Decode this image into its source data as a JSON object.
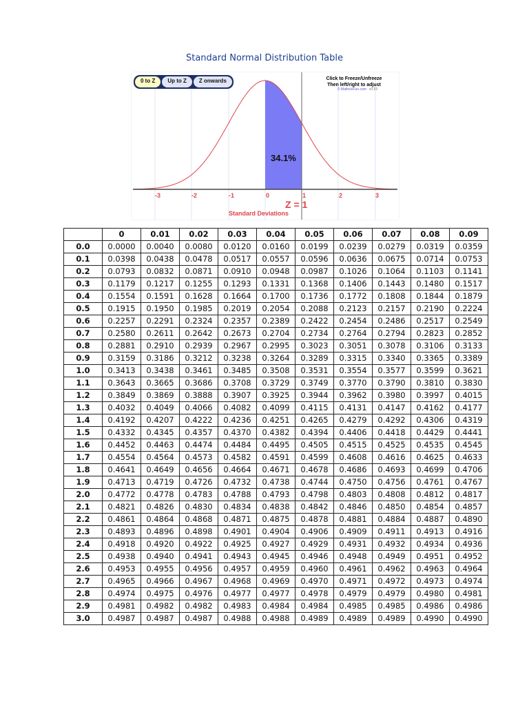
{
  "page": {
    "title": "Standard Normal Distribution Table"
  },
  "widget": {
    "mode_tabs": [
      {
        "label": "0 to Z",
        "active": true
      },
      {
        "label": "Up to Z",
        "active": false
      },
      {
        "label": "Z onwards",
        "active": false
      }
    ],
    "hint_line1": "Click to Freeze/Unfreeze",
    "hint_line2": "Then left/right to adjust",
    "credit": "© MathsIsFun.com",
    "version": "v0.53",
    "shaded_percent": "34.1%",
    "z_label": "Z = 1",
    "x_axis_label": "Standard Deviations",
    "x_ticks": [
      "-3",
      "-2",
      "-1",
      "0",
      "1",
      "2",
      "3"
    ],
    "colors": {
      "curve": "#e0434b",
      "shade": "#7b7bf5",
      "title": "#1f3f8f",
      "tab_active": "#fdfbc4",
      "tab_border": "#1d2f63"
    }
  },
  "chart_data": [
    {
      "type": "area",
      "title": "Standard Normal Distribution Table",
      "xlabel": "Standard Deviations",
      "ylabel": "",
      "x_ticks": [
        -3,
        -2,
        -1,
        0,
        1,
        2,
        3
      ],
      "xlim": [
        -3.6,
        3.6
      ],
      "series": [
        {
          "name": "Normal curve",
          "function": "standard normal pdf"
        },
        {
          "name": "Shaded area 0 to Z",
          "from": 0,
          "to": 1,
          "value_percent": 34.1
        }
      ],
      "annotations": [
        "34.1%",
        "Z = 1"
      ],
      "mode": "0 to Z",
      "grid": true
    },
    {
      "type": "table",
      "title": "Standard Normal Distribution Table (0 to Z)",
      "columns": [
        "",
        "0",
        "0.01",
        "0.02",
        "0.03",
        "0.04",
        "0.05",
        "0.06",
        "0.07",
        "0.08",
        "0.09"
      ],
      "rows": [
        {
          "z": "0.0",
          "values": [
            "0.0000",
            "0.0040",
            "0.0080",
            "0.0120",
            "0.0160",
            "0.0199",
            "0.0239",
            "0.0279",
            "0.0319",
            "0.0359"
          ]
        },
        {
          "z": "0.1",
          "values": [
            "0.0398",
            "0.0438",
            "0.0478",
            "0.0517",
            "0.0557",
            "0.0596",
            "0.0636",
            "0.0675",
            "0.0714",
            "0.0753"
          ]
        },
        {
          "z": "0.2",
          "values": [
            "0.0793",
            "0.0832",
            "0.0871",
            "0.0910",
            "0.0948",
            "0.0987",
            "0.1026",
            "0.1064",
            "0.1103",
            "0.1141"
          ]
        },
        {
          "z": "0.3",
          "values": [
            "0.1179",
            "0.1217",
            "0.1255",
            "0.1293",
            "0.1331",
            "0.1368",
            "0.1406",
            "0.1443",
            "0.1480",
            "0.1517"
          ]
        },
        {
          "z": "0.4",
          "values": [
            "0.1554",
            "0.1591",
            "0.1628",
            "0.1664",
            "0.1700",
            "0.1736",
            "0.1772",
            "0.1808",
            "0.1844",
            "0.1879"
          ]
        },
        {
          "z": "0.5",
          "values": [
            "0.1915",
            "0.1950",
            "0.1985",
            "0.2019",
            "0.2054",
            "0.2088",
            "0.2123",
            "0.2157",
            "0.2190",
            "0.2224"
          ]
        },
        {
          "z": "0.6",
          "values": [
            "0.2257",
            "0.2291",
            "0.2324",
            "0.2357",
            "0.2389",
            "0.2422",
            "0.2454",
            "0.2486",
            "0.2517",
            "0.2549"
          ]
        },
        {
          "z": "0.7",
          "values": [
            "0.2580",
            "0.2611",
            "0.2642",
            "0.2673",
            "0.2704",
            "0.2734",
            "0.2764",
            "0.2794",
            "0.2823",
            "0.2852"
          ]
        },
        {
          "z": "0.8",
          "values": [
            "0.2881",
            "0.2910",
            "0.2939",
            "0.2967",
            "0.2995",
            "0.3023",
            "0.3051",
            "0.3078",
            "0.3106",
            "0.3133"
          ]
        },
        {
          "z": "0.9",
          "values": [
            "0.3159",
            "0.3186",
            "0.3212",
            "0.3238",
            "0.3264",
            "0.3289",
            "0.3315",
            "0.3340",
            "0.3365",
            "0.3389"
          ]
        },
        {
          "z": "1.0",
          "values": [
            "0.3413",
            "0.3438",
            "0.3461",
            "0.3485",
            "0.3508",
            "0.3531",
            "0.3554",
            "0.3577",
            "0.3599",
            "0.3621"
          ]
        },
        {
          "z": "1.1",
          "values": [
            "0.3643",
            "0.3665",
            "0.3686",
            "0.3708",
            "0.3729",
            "0.3749",
            "0.3770",
            "0.3790",
            "0.3810",
            "0.3830"
          ]
        },
        {
          "z": "1.2",
          "values": [
            "0.3849",
            "0.3869",
            "0.3888",
            "0.3907",
            "0.3925",
            "0.3944",
            "0.3962",
            "0.3980",
            "0.3997",
            "0.4015"
          ]
        },
        {
          "z": "1.3",
          "values": [
            "0.4032",
            "0.4049",
            "0.4066",
            "0.4082",
            "0.4099",
            "0.4115",
            "0.4131",
            "0.4147",
            "0.4162",
            "0.4177"
          ]
        },
        {
          "z": "1.4",
          "values": [
            "0.4192",
            "0.4207",
            "0.4222",
            "0.4236",
            "0.4251",
            "0.4265",
            "0.4279",
            "0.4292",
            "0.4306",
            "0.4319"
          ]
        },
        {
          "z": "1.5",
          "values": [
            "0.4332",
            "0.4345",
            "0.4357",
            "0.4370",
            "0.4382",
            "0.4394",
            "0.4406",
            "0.4418",
            "0.4429",
            "0.4441"
          ]
        },
        {
          "z": "1.6",
          "values": [
            "0.4452",
            "0.4463",
            "0.4474",
            "0.4484",
            "0.4495",
            "0.4505",
            "0.4515",
            "0.4525",
            "0.4535",
            "0.4545"
          ]
        },
        {
          "z": "1.7",
          "values": [
            "0.4554",
            "0.4564",
            "0.4573",
            "0.4582",
            "0.4591",
            "0.4599",
            "0.4608",
            "0.4616",
            "0.4625",
            "0.4633"
          ]
        },
        {
          "z": "1.8",
          "values": [
            "0.4641",
            "0.4649",
            "0.4656",
            "0.4664",
            "0.4671",
            "0.4678",
            "0.4686",
            "0.4693",
            "0.4699",
            "0.4706"
          ]
        },
        {
          "z": "1.9",
          "values": [
            "0.4713",
            "0.4719",
            "0.4726",
            "0.4732",
            "0.4738",
            "0.4744",
            "0.4750",
            "0.4756",
            "0.4761",
            "0.4767"
          ]
        },
        {
          "z": "2.0",
          "values": [
            "0.4772",
            "0.4778",
            "0.4783",
            "0.4788",
            "0.4793",
            "0.4798",
            "0.4803",
            "0.4808",
            "0.4812",
            "0.4817"
          ]
        },
        {
          "z": "2.1",
          "values": [
            "0.4821",
            "0.4826",
            "0.4830",
            "0.4834",
            "0.4838",
            "0.4842",
            "0.4846",
            "0.4850",
            "0.4854",
            "0.4857"
          ]
        },
        {
          "z": "2.2",
          "values": [
            "0.4861",
            "0.4864",
            "0.4868",
            "0.4871",
            "0.4875",
            "0.4878",
            "0.4881",
            "0.4884",
            "0.4887",
            "0.4890"
          ]
        },
        {
          "z": "2.3",
          "values": [
            "0.4893",
            "0.4896",
            "0.4898",
            "0.4901",
            "0.4904",
            "0.4906",
            "0.4909",
            "0.4911",
            "0.4913",
            "0.4916"
          ]
        },
        {
          "z": "2.4",
          "values": [
            "0.4918",
            "0.4920",
            "0.4922",
            "0.4925",
            "0.4927",
            "0.4929",
            "0.4931",
            "0.4932",
            "0.4934",
            "0.4936"
          ]
        },
        {
          "z": "2.5",
          "values": [
            "0.4938",
            "0.4940",
            "0.4941",
            "0.4943",
            "0.4945",
            "0.4946",
            "0.4948",
            "0.4949",
            "0.4951",
            "0.4952"
          ]
        },
        {
          "z": "2.6",
          "values": [
            "0.4953",
            "0.4955",
            "0.4956",
            "0.4957",
            "0.4959",
            "0.4960",
            "0.4961",
            "0.4962",
            "0.4963",
            "0.4964"
          ]
        },
        {
          "z": "2.7",
          "values": [
            "0.4965",
            "0.4966",
            "0.4967",
            "0.4968",
            "0.4969",
            "0.4970",
            "0.4971",
            "0.4972",
            "0.4973",
            "0.4974"
          ]
        },
        {
          "z": "2.8",
          "values": [
            "0.4974",
            "0.4975",
            "0.4976",
            "0.4977",
            "0.4977",
            "0.4978",
            "0.4979",
            "0.4979",
            "0.4980",
            "0.4981"
          ]
        },
        {
          "z": "2.9",
          "values": [
            "0.4981",
            "0.4982",
            "0.4982",
            "0.4983",
            "0.4984",
            "0.4984",
            "0.4985",
            "0.4985",
            "0.4986",
            "0.4986"
          ]
        },
        {
          "z": "3.0",
          "values": [
            "0.4987",
            "0.4987",
            "0.4987",
            "0.4988",
            "0.4988",
            "0.4989",
            "0.4989",
            "0.4989",
            "0.4990",
            "0.4990"
          ]
        }
      ]
    }
  ]
}
